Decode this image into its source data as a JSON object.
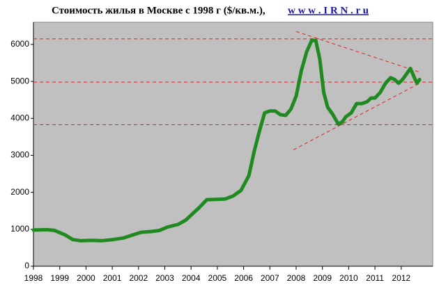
{
  "chart_data": {
    "type": "line",
    "title": "Стоимость жилья в Москве с 1998 г ($/кв.м.),",
    "title_link": "w w w . I R N . r u",
    "x": [
      1998,
      1998.5,
      1998.8,
      1999.2,
      1999.5,
      1999.8,
      2000.2,
      2000.6,
      2001,
      2001.4,
      2001.8,
      2002.1,
      2002.5,
      2002.8,
      2003.1,
      2003.5,
      2003.8,
      2004.1,
      2004.3,
      2004.6,
      2005,
      2005.3,
      2005.6,
      2005.9,
      2006.2,
      2006.4,
      2006.6,
      2006.8,
      2007,
      2007.2,
      2007.4,
      2007.6,
      2007.8,
      2008,
      2008.2,
      2008.4,
      2008.6,
      2008.75,
      2008.9,
      2009.05,
      2009.2,
      2009.4,
      2009.6,
      2009.75,
      2009.9,
      2010.1,
      2010.3,
      2010.5,
      2010.7,
      2010.85,
      2011,
      2011.2,
      2011.4,
      2011.6,
      2011.75,
      2011.9,
      2012.05,
      2012.2,
      2012.35,
      2012.5,
      2012.6,
      2012.7
    ],
    "values": [
      980,
      990,
      970,
      850,
      720,
      690,
      700,
      690,
      720,
      760,
      850,
      920,
      940,
      970,
      1060,
      1130,
      1250,
      1450,
      1580,
      1800,
      1810,
      1820,
      1900,
      2050,
      2450,
      3100,
      3650,
      4150,
      4200,
      4200,
      4100,
      4080,
      4250,
      4600,
      5300,
      5800,
      6120,
      6100,
      5600,
      4700,
      4300,
      4100,
      3850,
      3900,
      4050,
      4150,
      4400,
      4400,
      4450,
      4550,
      4550,
      4700,
      4950,
      5100,
      5050,
      4950,
      5050,
      5200,
      5350,
      5100,
      4950,
      5050
    ],
    "color": "#1f8a1f",
    "ref_lines": {
      "color": "#e02020",
      "lines": [
        {
          "x": [
            1998,
            2013.2
          ],
          "y": [
            6150,
            6150
          ]
        },
        {
          "x": [
            1998,
            2013.2
          ],
          "y": [
            4980,
            4980
          ]
        },
        {
          "x": [
            1998,
            2013.2
          ],
          "y": [
            3830,
            3830
          ]
        },
        {
          "x": [
            2008,
            2012.7
          ],
          "y": [
            6350,
            5250
          ]
        },
        {
          "x": [
            2007.9,
            2012.7
          ],
          "y": [
            3150,
            4950
          ]
        }
      ]
    },
    "xlim": [
      1998,
      2013.2
    ],
    "xticks": [
      1998,
      1999,
      2000,
      2001,
      2002,
      2003,
      2004,
      2005,
      2006,
      2007,
      2008,
      2009,
      2010,
      2011,
      2012
    ],
    "ylim": [
      0,
      6600
    ],
    "yticks": [
      0,
      1000,
      2000,
      3000,
      4000,
      5000,
      6000
    ],
    "background": "#c0c0c0"
  }
}
